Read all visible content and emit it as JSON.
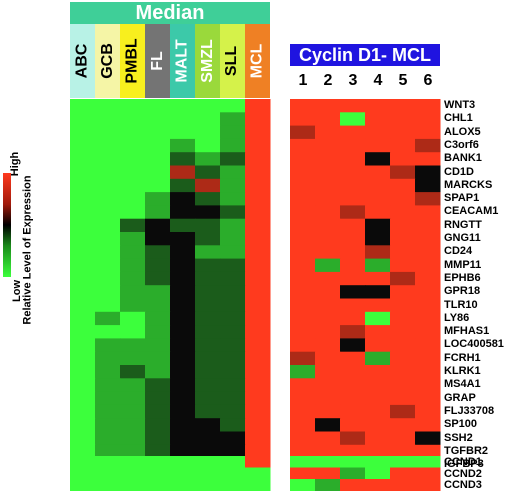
{
  "title": "Median",
  "cyclin_title": "Cyclin D1-  MCL",
  "legend": {
    "high": "High",
    "low": "Low",
    "axis": "Relative Level of Expression"
  },
  "subtypes": [
    {
      "label": "ABC",
      "color": "#b8f2e6",
      "text": "#000000"
    },
    {
      "label": "GCB",
      "color": "#f5f5a6",
      "text": "#000000"
    },
    {
      "label": "PMBL",
      "color": "#f8ef1e",
      "text": "#000000"
    },
    {
      "label": "FL",
      "color": "#747474",
      "text": "#ffffff"
    },
    {
      "label": "MALT",
      "color": "#3cc9a9",
      "text": "#ffffff"
    },
    {
      "label": "SMZL",
      "color": "#9ad93b",
      "text": "#ffffff"
    },
    {
      "label": "SLL",
      "color": "#d5f24a",
      "text": "#000000"
    },
    {
      "label": "MCL",
      "color": "#ef8024",
      "text": "#ffffff"
    }
  ],
  "cases": [
    "1",
    "2",
    "3",
    "4",
    "5",
    "6"
  ],
  "genes": [
    "WNT3",
    "CHL1",
    "ALOX5",
    "C3orf6",
    "BANK1",
    "CD1D",
    "MARCKS",
    "SPAP1",
    "CEACAM1",
    "RNGTT",
    "GNG11",
    "CD24",
    "MMP11",
    "EPHB6",
    "GPR18",
    "TLR10",
    "LY86",
    "MFHAS1",
    "LOC400581",
    "FCRH1",
    "KLRK1",
    "MS4A1",
    "GRAP",
    "FLJ33708",
    "SP100",
    "SSH2",
    "TGFBR2",
    "IGFBP3"
  ],
  "ccnd_genes": [
    "CCND1",
    "CCND2",
    "CCND3"
  ],
  "heatmap": {
    "median_values": [
      [
        -3,
        -3,
        -3,
        -3,
        -3,
        -3,
        -3,
        3
      ],
      [
        -3,
        -3,
        -3,
        -3,
        -3,
        -3,
        -2,
        3
      ],
      [
        -3,
        -3,
        -3,
        -3,
        -3,
        -3,
        -2,
        3
      ],
      [
        -3,
        -3,
        -3,
        -3,
        -2,
        -3,
        -2,
        3
      ],
      [
        -3,
        -3,
        -3,
        -3,
        -1,
        -2,
        -1,
        3
      ],
      [
        -3,
        -3,
        -3,
        -3,
        2,
        -1,
        -2,
        3
      ],
      [
        -3,
        -3,
        -3,
        -3,
        -1,
        2,
        -2,
        3
      ],
      [
        -3,
        -3,
        -3,
        -2,
        0,
        -1,
        -2,
        3
      ],
      [
        -3,
        -3,
        -3,
        -2,
        0,
        0,
        -1,
        3
      ],
      [
        -3,
        -3,
        -1,
        0,
        -1,
        -1,
        -2,
        3
      ],
      [
        -3,
        -3,
        -2,
        0,
        0,
        -1,
        -2,
        3
      ],
      [
        -3,
        -3,
        -2,
        -1,
        0,
        -2,
        -2,
        3
      ],
      [
        -3,
        -3,
        -2,
        -1,
        0,
        -1,
        -1,
        3
      ],
      [
        -3,
        -3,
        -2,
        -1,
        0,
        -1,
        -1,
        3
      ],
      [
        -3,
        -3,
        -2,
        -2,
        0,
        -1,
        -1,
        3
      ],
      [
        -3,
        -3,
        -2,
        -2,
        0,
        -1,
        -1,
        3
      ],
      [
        -3,
        -2,
        -3,
        -2,
        0,
        -1,
        -1,
        3
      ],
      [
        -3,
        -3,
        -3,
        -2,
        0,
        -1,
        -1,
        3
      ],
      [
        -3,
        -2,
        -2,
        -2,
        0,
        -1,
        -1,
        3
      ],
      [
        -3,
        -2,
        -2,
        -2,
        0,
        -1,
        -1,
        3
      ],
      [
        -3,
        -2,
        -1,
        -2,
        0,
        -1,
        -1,
        3
      ],
      [
        -3,
        -2,
        -2,
        -1,
        0,
        -1,
        -1,
        3
      ],
      [
        -3,
        -2,
        -2,
        -1,
        0,
        -1,
        -1,
        3
      ],
      [
        -3,
        -2,
        -2,
        -1,
        0,
        -1,
        -1,
        3
      ],
      [
        -3,
        -2,
        -2,
        -1,
        0,
        0,
        -1,
        3
      ],
      [
        -3,
        -2,
        -2,
        -1,
        0,
        0,
        0,
        3
      ],
      [
        -3,
        -2,
        -2,
        -1,
        0,
        0,
        0,
        3
      ],
      [
        -3,
        -2,
        -2,
        -1,
        0,
        0,
        0,
        3
      ]
    ],
    "cyclin_values": [
      [
        3,
        3,
        3,
        3,
        3,
        3
      ],
      [
        3,
        3,
        -3,
        3,
        3,
        3
      ],
      [
        2,
        3,
        3,
        3,
        3,
        3
      ],
      [
        3,
        3,
        3,
        3,
        3,
        2
      ],
      [
        3,
        3,
        3,
        0,
        3,
        3
      ],
      [
        3,
        3,
        3,
        3,
        2,
        0
      ],
      [
        3,
        3,
        3,
        3,
        3,
        0
      ],
      [
        3,
        3,
        3,
        3,
        3,
        2
      ],
      [
        3,
        3,
        2,
        3,
        3,
        3
      ],
      [
        3,
        3,
        3,
        0,
        3,
        3
      ],
      [
        3,
        3,
        3,
        0,
        3,
        3
      ],
      [
        3,
        3,
        3,
        2,
        3,
        3
      ],
      [
        3,
        -2,
        3,
        -2,
        3,
        3
      ],
      [
        3,
        3,
        3,
        3,
        2,
        3
      ],
      [
        3,
        3,
        0,
        0,
        3,
        3
      ],
      [
        3,
        3,
        3,
        3,
        3,
        3
      ],
      [
        3,
        3,
        3,
        -3,
        3,
        3
      ],
      [
        3,
        3,
        2,
        3,
        3,
        3
      ],
      [
        3,
        3,
        0,
        3,
        3,
        3
      ],
      [
        2,
        3,
        3,
        -2,
        3,
        3
      ],
      [
        -2,
        3,
        3,
        3,
        3,
        3
      ],
      [
        3,
        3,
        3,
        3,
        3,
        3
      ],
      [
        3,
        3,
        3,
        3,
        3,
        3
      ],
      [
        3,
        3,
        3,
        3,
        2,
        3
      ],
      [
        3,
        0,
        3,
        3,
        3,
        3
      ],
      [
        3,
        3,
        2,
        3,
        3,
        0
      ],
      [
        3,
        3,
        3,
        3,
        3,
        3
      ],
      [
        3,
        3,
        3,
        3,
        3,
        3
      ]
    ],
    "ccnd_median": [
      [
        -3,
        -3,
        -3,
        -3,
        -3,
        -3,
        -3,
        3
      ],
      [
        -3,
        -3,
        -3,
        -3,
        -3,
        -3,
        -3,
        -3
      ],
      [
        -3,
        -3,
        -3,
        -3,
        -3,
        -3,
        -3,
        -3
      ]
    ],
    "ccnd_cyclin": [
      [
        -3,
        -3,
        -3,
        -3,
        -3,
        -3
      ],
      [
        3,
        3,
        -2,
        -3,
        3,
        3
      ],
      [
        -3,
        -2,
        3,
        3,
        3,
        3
      ]
    ]
  }
}
